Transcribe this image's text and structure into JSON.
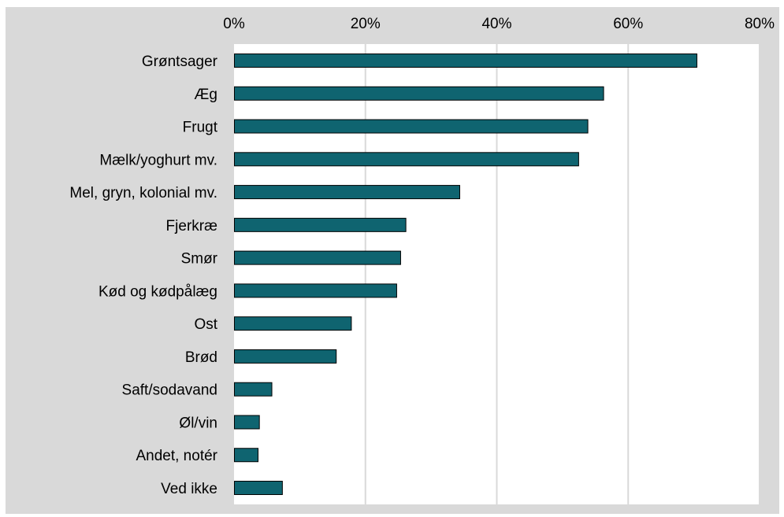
{
  "chart_data": {
    "type": "bar",
    "orientation": "horizontal",
    "categories": [
      "Grøntsager",
      "Æg",
      "Frugt",
      "Mælk/yoghurt mv.",
      "Mel, gryn, kolonial mv.",
      "Fjerkræ",
      "Smør",
      "Kød og kødpålæg",
      "Ost",
      "Brød",
      "Saft/sodavand",
      "Øl/vin",
      "Andet, notér",
      "Ved ikke"
    ],
    "values": [
      70.4,
      56.2,
      53.8,
      52.4,
      34.3,
      26.1,
      25.3,
      24.7,
      17.8,
      15.5,
      5.7,
      3.8,
      3.6,
      7.3
    ],
    "xlim": [
      0,
      80
    ],
    "xticks": [
      "0%",
      "20%",
      "40%",
      "60%",
      "80%"
    ],
    "x_axis_position": "top",
    "grid": true,
    "legend": "none",
    "title": "",
    "xlabel": "",
    "ylabel": "",
    "colors": {
      "bar_fill": "#0f6470",
      "bar_stroke": "#000000",
      "plot_background": "#ffffff",
      "chart_background": "#d9d9d9",
      "gridline": "#d9d9d9"
    }
  }
}
